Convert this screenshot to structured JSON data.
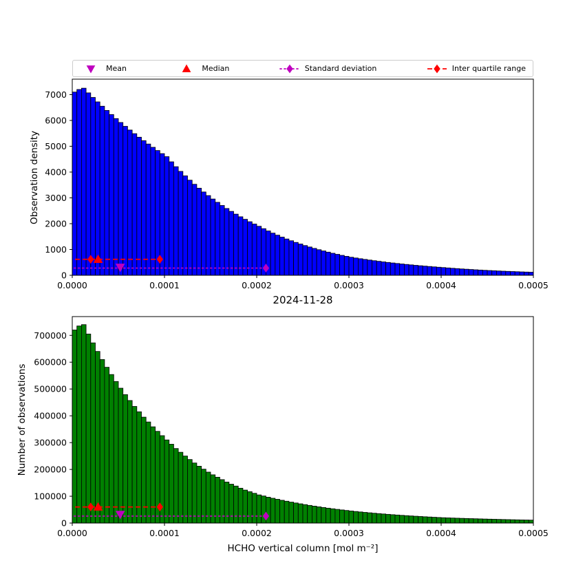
{
  "figure": {
    "date_title": "2024-11-28",
    "background": "#ffffff"
  },
  "colors": {
    "mean": "#bf00bf",
    "median": "#ff0000",
    "std": "#bf00bf",
    "iqr": "#ff0000",
    "histogram_top": "#0000ff",
    "histogram_bottom": "#008000",
    "edge": "#000000"
  },
  "legend": {
    "items": [
      {
        "label": "Mean",
        "marker": "triangle-down",
        "color": "#bf00bf",
        "line": "none"
      },
      {
        "label": "Median",
        "marker": "triangle-up",
        "color": "#ff0000",
        "line": "none"
      },
      {
        "label": "Standard deviation",
        "marker": "diamond",
        "color": "#bf00bf",
        "line": "dotted"
      },
      {
        "label": "Inter quartile range",
        "marker": "diamond",
        "color": "#ff0000",
        "line": "dashed"
      }
    ]
  },
  "chart_data": [
    {
      "type": "bar",
      "subtype": "histogram",
      "title": "",
      "ylabel": "Observation density",
      "xlabel": "",
      "bar_color": "#0000ff",
      "xlim": [
        0,
        0.0005
      ],
      "ylim": [
        0,
        7600
      ],
      "bin_width": 5e-06,
      "xticks": [
        0,
        0.0001,
        0.0002,
        0.0003,
        0.0004,
        0.0005
      ],
      "xtick_labels": [
        "0.0000",
        "0.0001",
        "0.0002",
        "0.0003",
        "0.0004",
        "0.0005"
      ],
      "yticks": [
        0,
        1000,
        2000,
        3000,
        4000,
        5000,
        6000,
        7000
      ],
      "ytick_labels": [
        "0",
        "1000",
        "2000",
        "3000",
        "4000",
        "5000",
        "6000",
        "7000"
      ],
      "grid": false,
      "legend_position": "top",
      "values": [
        7100,
        7200,
        7250,
        7069,
        6892,
        6720,
        6552,
        6388,
        6228,
        6073,
        5921,
        5773,
        5629,
        5488,
        5351,
        5217,
        5087,
        4960,
        4836,
        4715,
        4597,
        4398,
        4208,
        4027,
        3853,
        3686,
        3527,
        3375,
        3229,
        3090,
        2956,
        2828,
        2706,
        2589,
        2477,
        2370,
        2268,
        2170,
        2076,
        1986,
        1900,
        1807,
        1719,
        1635,
        1556,
        1480,
        1408,
        1339,
        1274,
        1212,
        1153,
        1097,
        1043,
        992,
        944,
        898,
        854,
        813,
        773,
        735,
        700,
        671,
        643,
        616,
        591,
        566,
        543,
        520,
        499,
        478,
        458,
        439,
        421,
        404,
        387,
        371,
        356,
        341,
        327,
        313,
        300,
        286,
        272,
        260,
        247,
        236,
        225,
        214,
        204,
        194,
        185,
        177,
        168,
        160,
        153,
        146,
        139,
        132,
        126,
        120
      ],
      "markers": {
        "mean": {
          "x": 5.2e-05,
          "y": 310
        },
        "median": {
          "x": 2.8e-05,
          "y": 620
        },
        "std": {
          "x_start": 2e-06,
          "x_end": 0.00021,
          "y": 280
        },
        "iqr": {
          "x_start": 3e-06,
          "q1": 2e-05,
          "q3": 9.5e-05,
          "y": 620
        }
      }
    },
    {
      "type": "bar",
      "subtype": "histogram",
      "title": "",
      "ylabel": "Number of observations",
      "xlabel": "HCHO vertical column [mol m⁻²]",
      "bar_color": "#008000",
      "xlim": [
        0,
        0.0005
      ],
      "ylim": [
        0,
        770000
      ],
      "bin_width": 5e-06,
      "xticks": [
        0,
        0.0001,
        0.0002,
        0.0003,
        0.0004,
        0.0005
      ],
      "xtick_labels": [
        "0.0000",
        "0.0001",
        "0.0002",
        "0.0003",
        "0.0004",
        "0.0005"
      ],
      "yticks": [
        0,
        100000,
        200000,
        300000,
        400000,
        500000,
        600000,
        700000
      ],
      "ytick_labels": [
        "0",
        "100000",
        "200000",
        "300000",
        "400000",
        "500000",
        "600000",
        "700000"
      ],
      "grid": false,
      "values": [
        720000,
        735000,
        740000,
        705000,
        672000,
        640000,
        610000,
        581000,
        554000,
        528000,
        503000,
        479000,
        457000,
        435000,
        415000,
        395000,
        377000,
        359000,
        342000,
        326000,
        310000,
        294000,
        278000,
        264000,
        250000,
        237000,
        224000,
        212000,
        201000,
        190000,
        180000,
        171000,
        162000,
        153000,
        145000,
        138000,
        130000,
        123000,
        117000,
        111000,
        105000,
        101000,
        96500,
        92500,
        88700,
        85000,
        81500,
        78100,
        74900,
        71800,
        68800,
        65900,
        63200,
        60600,
        58000,
        55600,
        53300,
        51100,
        49000,
        47000,
        45000,
        43200,
        41500,
        39800,
        38300,
        36700,
        35300,
        33900,
        32500,
        31200,
        30000,
        28800,
        27700,
        26600,
        25500,
        24500,
        23500,
        22600,
        21700,
        20800,
        20000,
        19400,
        18800,
        18200,
        17600,
        17100,
        16600,
        16100,
        15600,
        15100,
        14600,
        14200,
        13700,
        13300,
        12900,
        12500,
        12100,
        11700,
        11400,
        11000
      ],
      "markers": {
        "mean": {
          "x": 5.2e-05,
          "y": 32000
        },
        "median": {
          "x": 2.8e-05,
          "y": 60000
        },
        "std": {
          "x_start": 2e-06,
          "x_end": 0.00021,
          "y": 26000
        },
        "iqr": {
          "x_start": 3e-06,
          "q1": 2e-05,
          "q3": 9.5e-05,
          "y": 60000
        }
      }
    }
  ]
}
